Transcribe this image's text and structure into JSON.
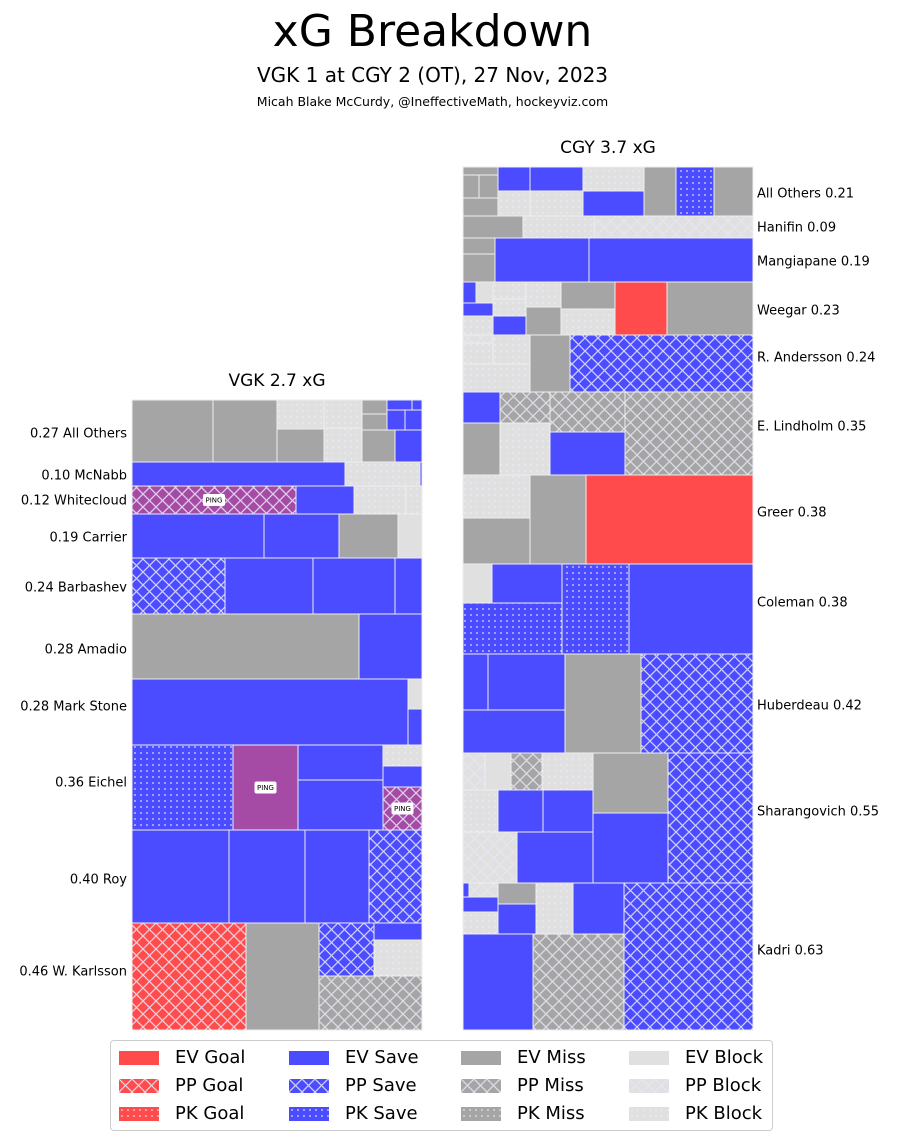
{
  "title": "xG Breakdown",
  "subtitle": "VGK 1 at CGY 2 (OT), 27 Nov, 2023",
  "credit": "Micah Blake McCurdy, @IneffectiveMath, hockeyviz.com",
  "colors": {
    "goal": "#ff4b4b",
    "save": "#4b4bff",
    "miss": "#a5a5a5",
    "block": "#e0e0e0",
    "ping": "#a54ba5"
  },
  "chart_data": {
    "type": "treemap",
    "title": "xG Breakdown",
    "teams": [
      {
        "team": "VGK",
        "label": "VGK 2.7 xG",
        "total_xg": 2.7,
        "label_side": "left",
        "players": [
          {
            "name": "All Others",
            "xg": 0.27,
            "label": "0.27 All Others"
          },
          {
            "name": "McNabb",
            "xg": 0.1,
            "label": "0.10 McNabb"
          },
          {
            "name": "Whitecloud",
            "xg": 0.12,
            "label": "0.12 Whitecloud"
          },
          {
            "name": "Carrier",
            "xg": 0.19,
            "label": "0.19 Carrier"
          },
          {
            "name": "Barbashev",
            "xg": 0.24,
            "label": "0.24 Barbashev"
          },
          {
            "name": "Amadio",
            "xg": 0.28,
            "label": "0.28 Amadio"
          },
          {
            "name": "Mark Stone",
            "xg": 0.28,
            "label": "0.28 Mark Stone"
          },
          {
            "name": "Eichel",
            "xg": 0.36,
            "label": "0.36 Eichel"
          },
          {
            "name": "Roy",
            "xg": 0.4,
            "label": "0.40 Roy"
          },
          {
            "name": "W. Karlsson",
            "xg": 0.46,
            "label": "0.46 W. Karlsson"
          }
        ]
      },
      {
        "team": "CGY",
        "label": "CGY 3.7 xG",
        "total_xg": 3.7,
        "label_side": "right",
        "players": [
          {
            "name": "All Others",
            "xg": 0.21,
            "label": "All Others 0.21"
          },
          {
            "name": "Hanifin",
            "xg": 0.09,
            "label": "Hanifin 0.09"
          },
          {
            "name": "Mangiapane",
            "xg": 0.19,
            "label": "Mangiapane 0.19"
          },
          {
            "name": "Weegar",
            "xg": 0.23,
            "label": "Weegar 0.23"
          },
          {
            "name": "R. Andersson",
            "xg": 0.24,
            "label": "R. Andersson 0.24"
          },
          {
            "name": "E. Lindholm",
            "xg": 0.35,
            "label": "E. Lindholm 0.35"
          },
          {
            "name": "Greer",
            "xg": 0.38,
            "label": "Greer 0.38"
          },
          {
            "name": "Coleman",
            "xg": 0.38,
            "label": "Coleman 0.38"
          },
          {
            "name": "Huberdeau",
            "xg": 0.42,
            "label": "Huberdeau 0.42"
          },
          {
            "name": "Sharangovich",
            "xg": 0.55,
            "label": "Sharangovich 0.55"
          },
          {
            "name": "Kadri",
            "xg": 0.63,
            "label": "Kadri 0.63"
          }
        ]
      }
    ],
    "annotations": [
      "PING",
      "PING",
      "PING"
    ],
    "legend": {
      "placement": "bottom",
      "entries": [
        {
          "label": "EV Goal",
          "outcome": "goal",
          "state": "EV"
        },
        {
          "label": "PP Goal",
          "outcome": "goal",
          "state": "PP"
        },
        {
          "label": "PK Goal",
          "outcome": "goal",
          "state": "PK"
        },
        {
          "label": "EV Save",
          "outcome": "save",
          "state": "EV"
        },
        {
          "label": "PP Save",
          "outcome": "save",
          "state": "PP"
        },
        {
          "label": "PK Save",
          "outcome": "save",
          "state": "PK"
        },
        {
          "label": "EV Miss",
          "outcome": "miss",
          "state": "EV"
        },
        {
          "label": "PP Miss",
          "outcome": "miss",
          "state": "PP"
        },
        {
          "label": "PK Miss",
          "outcome": "miss",
          "state": "PK"
        },
        {
          "label": "EV Block",
          "outcome": "block",
          "state": "EV"
        },
        {
          "label": "PP Block",
          "outcome": "block",
          "state": "PP"
        },
        {
          "label": "PK Block",
          "outcome": "block",
          "state": "PK"
        }
      ]
    }
  }
}
